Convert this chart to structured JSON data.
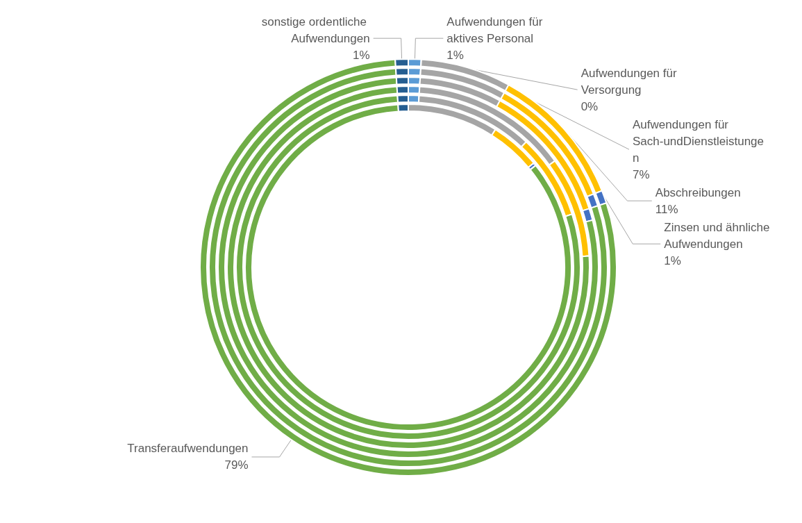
{
  "chart_data": [
    {
      "type": "donut",
      "categories": [
        "Aufwendungen für aktives Personal",
        "Aufwendungen für Versorgung",
        "Aufwendungen für Sach-undDienstleistungen",
        "Abschreibungen",
        "Zinsen und ähnliche Aufwendungen",
        "Transferaufwendungen",
        "sonstige ordentliche Aufwendungen"
      ],
      "colors": [
        "#5b9bd5",
        "#ed7d31",
        "#a5a5a5",
        "#ffc000",
        "#4472c4",
        "#70ad47",
        "#255e91"
      ],
      "values": [
        1,
        0,
        7,
        11,
        1,
        79,
        1
      ],
      "value_labels": [
        "1%",
        "0%",
        "7%",
        "11%",
        "1%",
        "79%",
        "1%"
      ]
    },
    {
      "type": "donut",
      "categories": [
        null,
        null,
        null,
        null,
        null,
        null,
        null
      ],
      "colors": [
        "#5b9bd5",
        "#ed7d31",
        "#a5a5a5",
        "#ffc000",
        "#4472c4",
        "#70ad47",
        "#255e91"
      ],
      "values": [
        1,
        0,
        7,
        11,
        1,
        79,
        1
      ]
    },
    {
      "type": "donut",
      "categories": [
        null,
        null,
        null,
        null,
        null,
        null,
        null
      ],
      "colors": [
        "#5b9bd5",
        "#ed7d31",
        "#a5a5a5",
        "#ffc000",
        "#4472c4",
        "#70ad47",
        "#255e91"
      ],
      "values": [
        1,
        0,
        7,
        12,
        1,
        78,
        1
      ]
    },
    {
      "type": "donut",
      "categories": [
        null,
        null,
        null,
        null,
        null,
        null,
        null
      ],
      "colors": [
        "#5b9bd5",
        "#ed7d31",
        "#a5a5a5",
        "#ffc000",
        "#4472c4",
        "#70ad47",
        "#255e91"
      ],
      "values": [
        1,
        0,
        14,
        9,
        0,
        75,
        1
      ]
    },
    {
      "type": "donut",
      "categories": [
        null,
        null,
        null,
        null,
        null,
        null,
        null
      ],
      "colors": [
        "#5b9bd5",
        "#ed7d31",
        "#a5a5a5",
        "#ffc000",
        "#4472c4",
        "#70ad47",
        "#255e91"
      ],
      "values": [
        1,
        0,
        11,
        8,
        0,
        79,
        1
      ]
    },
    {
      "type": "donut",
      "categories": [
        null,
        null,
        null,
        null,
        null,
        null,
        null
      ],
      "colors": [
        "#5b9bd5",
        "#ed7d31",
        "#a5a5a5",
        "#ffc000",
        "#4472c4",
        "#70ad47",
        "#255e91"
      ],
      "values": [
        0,
        0,
        9,
        5,
        0.3,
        85,
        1
      ]
    }
  ]
}
